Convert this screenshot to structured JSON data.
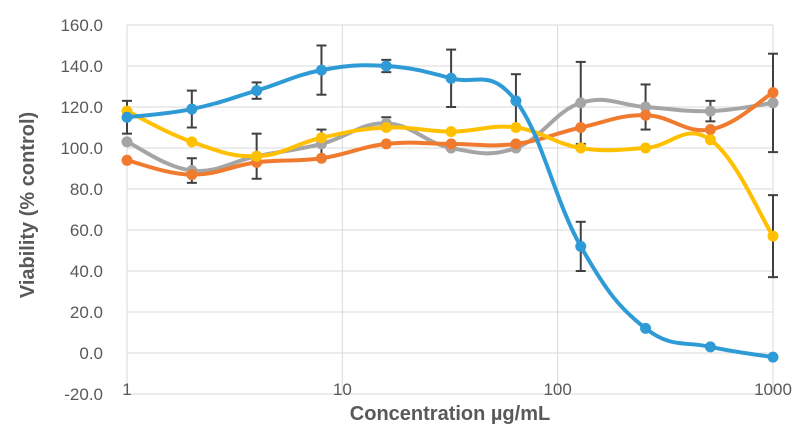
{
  "chart_data": {
    "type": "line",
    "title": "",
    "xlabel": "Concentration µg/mL",
    "ylabel": "Viability (% control)",
    "x_scale": "log",
    "xlim": [
      1,
      1000
    ],
    "ylim": [
      -20,
      160
    ],
    "y_step": 20,
    "x_ticks": [
      1,
      10,
      100,
      1000
    ],
    "x_tick_labels": [
      "1",
      "10",
      "100",
      "1000"
    ],
    "y_tick_labels": [
      "-20.0",
      "0.0",
      "20.0",
      "40.0",
      "60.0",
      "80.0",
      "100.0",
      "120.0",
      "140.0",
      "160.0"
    ],
    "grid": "vertical at decades, horizontal at y ticks",
    "legend": "none",
    "x": [
      1,
      2,
      4,
      8,
      16,
      32,
      64,
      128,
      256,
      512,
      1000
    ],
    "series": [
      {
        "color": "#2e9bd6",
        "values": [
          115,
          119,
          128,
          138,
          140,
          134,
          123,
          52,
          12,
          3,
          -2
        ],
        "errors": [
          8,
          9,
          4,
          12,
          3,
          14,
          13,
          12,
          0,
          0,
          0
        ]
      },
      {
        "color": "#f07b2f",
        "values": [
          94,
          87,
          93,
          95,
          102,
          102,
          102,
          110,
          116,
          109,
          127
        ],
        "errors": [
          0,
          0,
          0,
          0,
          0,
          0,
          0,
          0,
          0,
          0,
          0
        ]
      },
      {
        "color": "#a5a5a5",
        "values": [
          103,
          89,
          96,
          102,
          112,
          100,
          100,
          122,
          120,
          118,
          122
        ],
        "errors": [
          0,
          6,
          11,
          7,
          3,
          0,
          0,
          20,
          11,
          5,
          24
        ]
      },
      {
        "color": "#ffc000",
        "values": [
          118,
          103,
          96,
          105,
          110,
          108,
          110,
          100,
          100,
          104,
          57
        ],
        "errors": [
          0,
          0,
          0,
          0,
          0,
          0,
          0,
          0,
          0,
          0,
          20
        ]
      }
    ]
  }
}
